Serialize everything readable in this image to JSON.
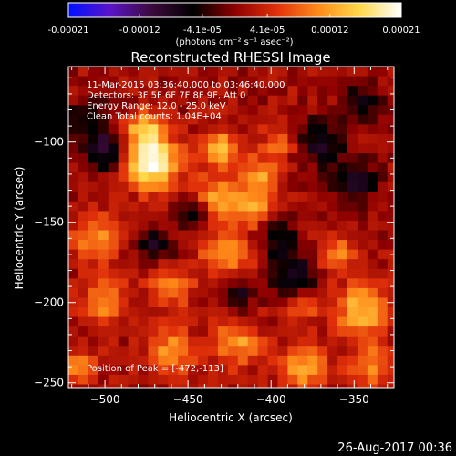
{
  "colorbar": {
    "tick_labels": [
      "-0.00021",
      "-0.00012",
      "-4.1e-05",
      "4.1e-05",
      "0.00012",
      "0.00021"
    ],
    "tick_values": [
      -0.00021,
      -0.00012,
      -4.1e-05,
      4.1e-05,
      0.00012,
      0.00021
    ],
    "range": [
      -0.00021,
      0.00021
    ],
    "unit_label": "(photons cm⁻² s⁻¹ asec⁻²)",
    "colors": [
      "#0010ff",
      "#5a14c8",
      "#3c0a3c",
      "#000000",
      "#8c0000",
      "#e0300a",
      "#ff8a1a",
      "#ffd84a",
      "#ffffff"
    ]
  },
  "chart_data": {
    "type": "heatmap",
    "title": "Reconstructed RHESSI Image",
    "xlabel": "Heliocentric X (arcsec)",
    "ylabel": "Heliocentric Y (arcsec)",
    "xlim": [
      -522,
      -326
    ],
    "ylim": [
      -253,
      -53
    ],
    "x_ticks": [
      -500,
      -450,
      -400,
      -350
    ],
    "x_tick_labels": [
      "−500",
      "−450",
      "−400",
      "−350"
    ],
    "y_ticks": [
      -100,
      -150,
      -200,
      -250
    ],
    "y_tick_labels": [
      "−100",
      "−150",
      "−200",
      "−250"
    ],
    "annotations": [
      "11-Mar-2015 03:36:40.000 to 03:46:40.000",
      "Detectors: 3F 5F 6F 7F 8F 9F, Att 0",
      "Energy Range: 12.0 - 25.0 keV",
      "Clean     Total counts: 1.04E+04"
    ],
    "peak_label": "Position of Peak = [-472,-113]",
    "peak": {
      "x": -472,
      "y": -113
    },
    "grid": false
  },
  "footer": {
    "timestamp": "26-Aug-2017 00:36"
  }
}
